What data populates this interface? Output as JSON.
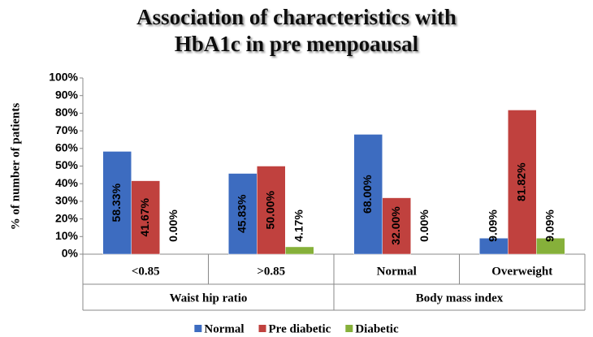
{
  "chart_data": {
    "type": "bar",
    "title": [
      "Association of characteristics with",
      "HbA1c in pre menpoausal"
    ],
    "y_label": "% of number of patients",
    "groups": [
      {
        "name": "Waist hip ratio",
        "categories": [
          "<0.85",
          ">0.85"
        ]
      },
      {
        "name": "Body mass index",
        "categories": [
          "Normal",
          "Overweight"
        ]
      }
    ],
    "series": [
      {
        "name": "Normal",
        "color": "#3d6cc0",
        "values": [
          58.33,
          45.83,
          68.0,
          9.09
        ],
        "value_labels": [
          "58.33%",
          "45.83%",
          "68.00%",
          "9.09%"
        ]
      },
      {
        "name": "Pre diabetic",
        "color": "#c0413e",
        "values": [
          41.67,
          50.0,
          32.0,
          81.82
        ],
        "value_labels": [
          "41.67%",
          "50.00%",
          "32.00%",
          "81.82%"
        ]
      },
      {
        "name": "Diabetic",
        "color": "#86b03a",
        "values": [
          0.0,
          4.17,
          0.0,
          9.09
        ],
        "value_labels": [
          "0.00%",
          "4.17%",
          "0.00%",
          "9.09%"
        ]
      }
    ],
    "ylim": [
      0,
      100
    ],
    "yticks": [
      {
        "value": 0,
        "label": "0%"
      },
      {
        "value": 10,
        "label": "10%"
      },
      {
        "value": 20,
        "label": "20%"
      },
      {
        "value": 30,
        "label": "30%"
      },
      {
        "value": 40,
        "label": "40%"
      },
      {
        "value": 50,
        "label": "50%"
      },
      {
        "value": 60,
        "label": "60%"
      },
      {
        "value": 70,
        "label": "70%"
      },
      {
        "value": 80,
        "label": "80%"
      },
      {
        "value": 90,
        "label": "90%"
      },
      {
        "value": 100,
        "label": "100%"
      }
    ],
    "legend": "bottom"
  }
}
